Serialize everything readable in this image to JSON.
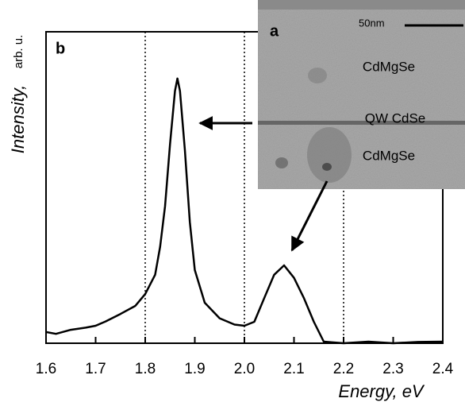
{
  "chart_data": {
    "type": "line",
    "panel_label": "b",
    "y_label": "Intensity,",
    "y_unit": "arb. u.",
    "x_label": "Energy, eV",
    "x": [
      1.6,
      1.62,
      1.65,
      1.68,
      1.7,
      1.72,
      1.75,
      1.78,
      1.8,
      1.82,
      1.83,
      1.84,
      1.85,
      1.86,
      1.865,
      1.87,
      1.88,
      1.89,
      1.9,
      1.92,
      1.95,
      1.98,
      2.0,
      2.02,
      2.04,
      2.06,
      2.08,
      2.1,
      2.12,
      2.14,
      2.16,
      2.2,
      2.25,
      2.3,
      2.35,
      2.4
    ],
    "y": [
      0.036,
      0.03,
      0.043,
      0.05,
      0.056,
      0.07,
      0.094,
      0.12,
      0.158,
      0.22,
      0.31,
      0.44,
      0.64,
      0.81,
      0.85,
      0.81,
      0.62,
      0.39,
      0.235,
      0.13,
      0.08,
      0.06,
      0.056,
      0.069,
      0.145,
      0.22,
      0.25,
      0.21,
      0.145,
      0.069,
      0.005,
      0.0,
      0.005,
      0.0,
      0.004,
      0.005
    ],
    "color": "#000000",
    "xlim": [
      1.6,
      2.4
    ],
    "ylim": [
      0,
      1
    ],
    "xticks": [
      1.6,
      1.7,
      1.8,
      1.9,
      {
        "value": 2,
        "label": "2.0"
      },
      2.1,
      2.2,
      2.3,
      2.4
    ],
    "vlines": [
      1.8,
      2.0,
      2.2
    ],
    "inset": {
      "label": "a",
      "scale": "50nm",
      "layer_top": "CdMgSe",
      "layer_mid": "QW CdSe",
      "layer_bottom": "CdMgSe"
    }
  }
}
